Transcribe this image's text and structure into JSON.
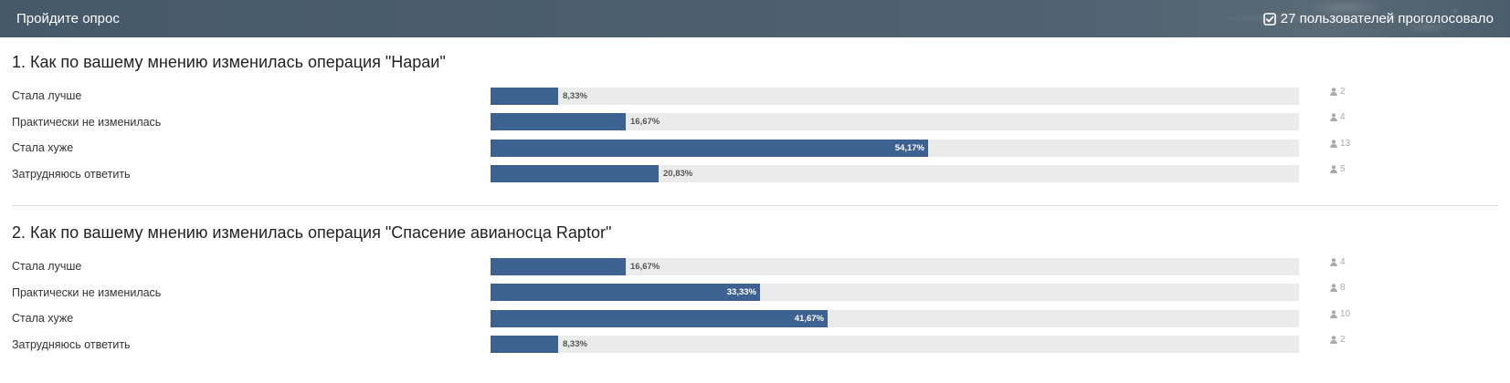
{
  "header": {
    "title": "Пройдите опрос",
    "voters_text": "27 пользователей проголосовало",
    "check_icon": "check-square-icon"
  },
  "colors": {
    "header_bg": "#4b5d6c",
    "bar_fill": "#3d6292",
    "bar_track": "#ebebeb"
  },
  "questions": [
    {
      "title": "1. Как по вашему мнению изменилась операция \"Нараи\"",
      "options": [
        {
          "label": "Стала лучше",
          "percent": 8.33,
          "percent_text": "8,33%",
          "votes": "2"
        },
        {
          "label": "Практически не изменилась",
          "percent": 16.67,
          "percent_text": "16,67%",
          "votes": "4"
        },
        {
          "label": "Стала хуже",
          "percent": 54.17,
          "percent_text": "54,17%",
          "votes": "13"
        },
        {
          "label": "Затрудняюсь ответить",
          "percent": 20.83,
          "percent_text": "20,83%",
          "votes": "5"
        }
      ]
    },
    {
      "title": "2. Как по вашему мнению изменилась операция \"Спасение авианосца Raptor\"",
      "options": [
        {
          "label": "Стала лучше",
          "percent": 16.67,
          "percent_text": "16,67%",
          "votes": "4"
        },
        {
          "label": "Практически не изменилась",
          "percent": 33.33,
          "percent_text": "33,33%",
          "votes": "8"
        },
        {
          "label": "Стала хуже",
          "percent": 41.67,
          "percent_text": "41,67%",
          "votes": "10"
        },
        {
          "label": "Затрудняюсь ответить",
          "percent": 8.33,
          "percent_text": "8,33%",
          "votes": "2"
        }
      ]
    }
  ]
}
